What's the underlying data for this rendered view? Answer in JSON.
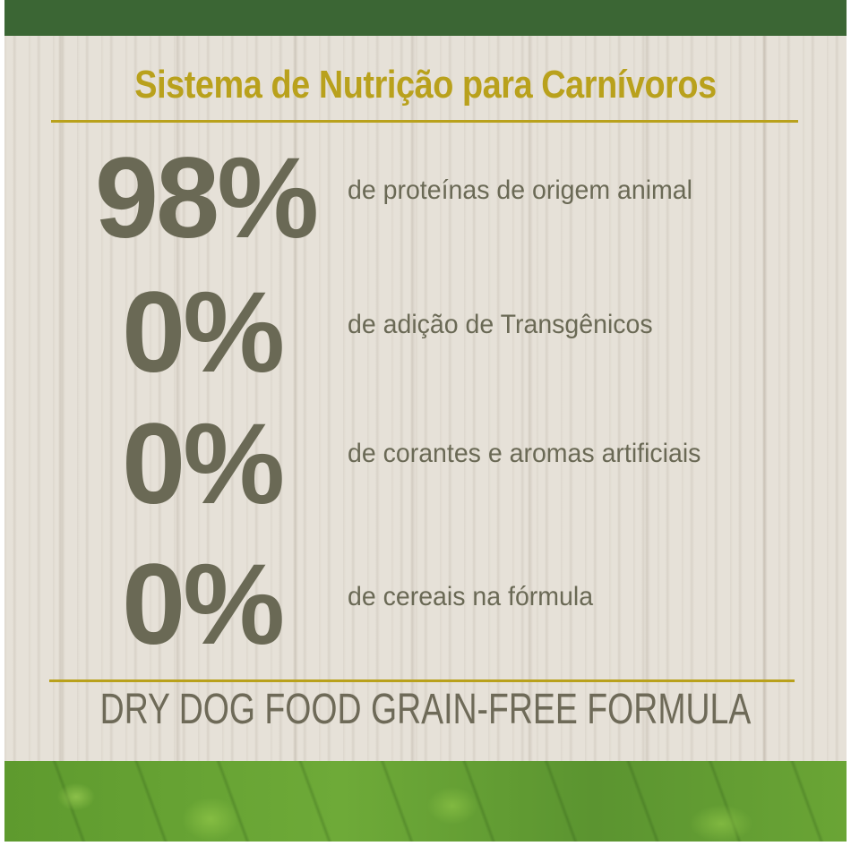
{
  "title": "Sistema de Nutrição para Carnívoros",
  "stats": [
    {
      "value": "98%",
      "description": "de proteínas de origem animal"
    },
    {
      "value": "0%",
      "description": "de adição de Transgênicos"
    },
    {
      "value": "0%",
      "description": "de corantes e aromas artificiais"
    },
    {
      "value": "0%",
      "description": "de cereais na fórmula"
    }
  ],
  "footer": "DRY DOG FOOD GRAIN-FREE FORMULA",
  "colors": {
    "top_bar": "#3b6634",
    "title": "#b9a11c",
    "text": "#6a6955",
    "background": "#e6e1d8",
    "leaf": "#6aa535"
  }
}
